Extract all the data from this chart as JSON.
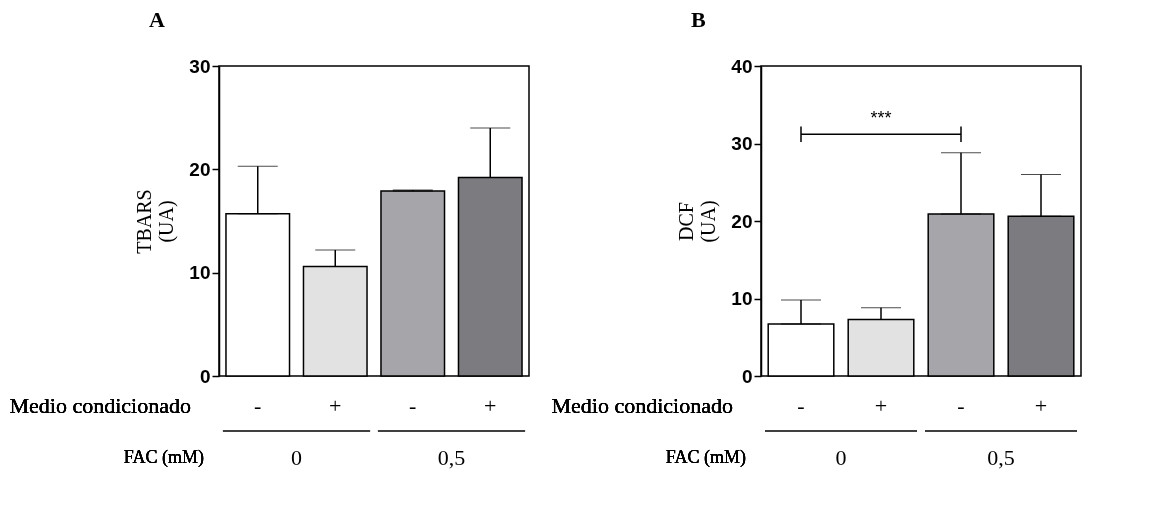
{
  "chart_data": [
    {
      "type": "bar",
      "title": "A",
      "ylabel": "TBARS\n(UA)",
      "categories": [
        "-",
        "+",
        "-",
        "+"
      ],
      "values": [
        15.7,
        10.6,
        17.9,
        19.2
      ],
      "colors": [
        "#ffffff",
        "#e2e2e2",
        "#a5a5aa",
        "#7c7c80"
      ],
      "errors": [
        [
          15.7,
          20.3
        ],
        [
          10.6,
          12.2
        ],
        [
          17.9,
          18.0
        ],
        [
          19.2,
          24.0
        ]
      ],
      "ylim": [
        0,
        30
      ],
      "yticks": [
        0,
        10,
        20,
        30
      ],
      "grid": false,
      "annotations": [
        "Medio condicionado",
        "FAC (mM)",
        "0",
        "0,5"
      ]
    },
    {
      "type": "bar",
      "title": "B",
      "ylabel": "DCF\n(UA)",
      "categories": [
        "-",
        "+",
        "-",
        "+"
      ],
      "values": [
        6.7,
        7.3,
        20.9,
        20.6
      ],
      "colors": [
        "#ffffff",
        "#e2e2e2",
        "#a5a5aa",
        "#7c7c80"
      ],
      "errors": [
        [
          6.7,
          9.8
        ],
        [
          7.3,
          8.8
        ],
        [
          20.9,
          28.8
        ],
        [
          20.6,
          26.0
        ]
      ],
      "ylim": [
        0,
        40
      ],
      "yticks": [
        0,
        10,
        20,
        30,
        40
      ],
      "grid": false,
      "annotations": [
        "Medio condicionado",
        "FAC (mM)",
        "0",
        "0,5",
        "***"
      ]
    }
  ]
}
